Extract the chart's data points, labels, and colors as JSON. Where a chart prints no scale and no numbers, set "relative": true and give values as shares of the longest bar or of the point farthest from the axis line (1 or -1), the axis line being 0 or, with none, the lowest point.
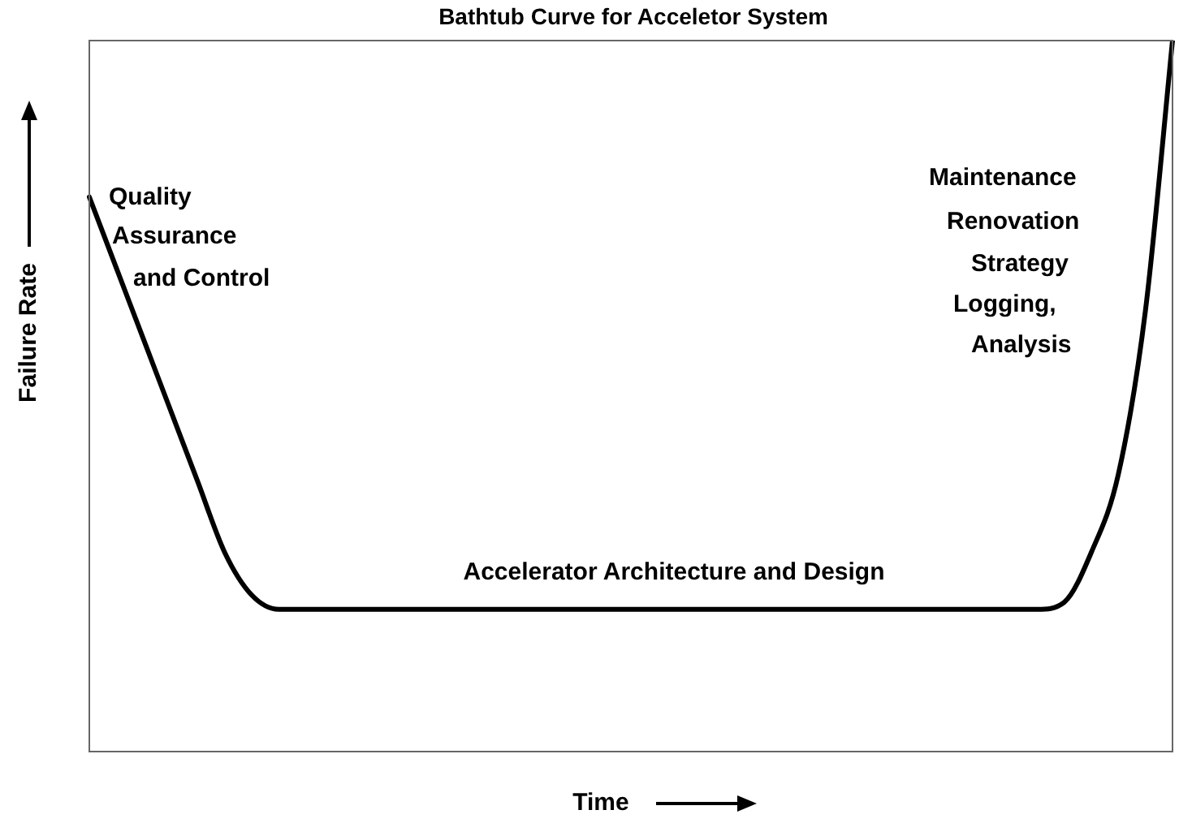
{
  "chart_data": {
    "type": "line",
    "title": "Bathtub Curve for Acceletor System",
    "xlabel": "Time",
    "ylabel": "Failure Rate",
    "relative": true,
    "legend": false,
    "marker": "none",
    "line_style": "solid",
    "categories": [
      null,
      null,
      null,
      null,
      null,
      null,
      null,
      null,
      null,
      null,
      null,
      null,
      null,
      null,
      null,
      null,
      null,
      null,
      null,
      null,
      null,
      null,
      null,
      null,
      null,
      null,
      null,
      null,
      null,
      null,
      null,
      null,
      null,
      null,
      null,
      null,
      null,
      null,
      null,
      null,
      null
    ],
    "series": [
      {
        "color": "#000000",
        "values": [
          0.78,
          0.68,
          0.58,
          0.48,
          0.38,
          0.28,
          0.22,
          0.2,
          0.2,
          0.2,
          0.2,
          0.2,
          0.2,
          0.2,
          0.2,
          0.2,
          0.2,
          0.2,
          0.2,
          0.2,
          0.2,
          0.2,
          0.2,
          0.2,
          0.2,
          0.2,
          0.2,
          0.2,
          0.2,
          0.2,
          0.2,
          0.2,
          0.2,
          0.2,
          0.2,
          0.2,
          0.21,
          0.28,
          0.39,
          0.62,
          1.0
        ]
      }
    ],
    "annotations": [
      "Quality Assurance and Control",
      "Maintenance Renovation Strategy",
      "Logging, Analysis",
      "Accelerator Architecture and Design"
    ]
  }
}
